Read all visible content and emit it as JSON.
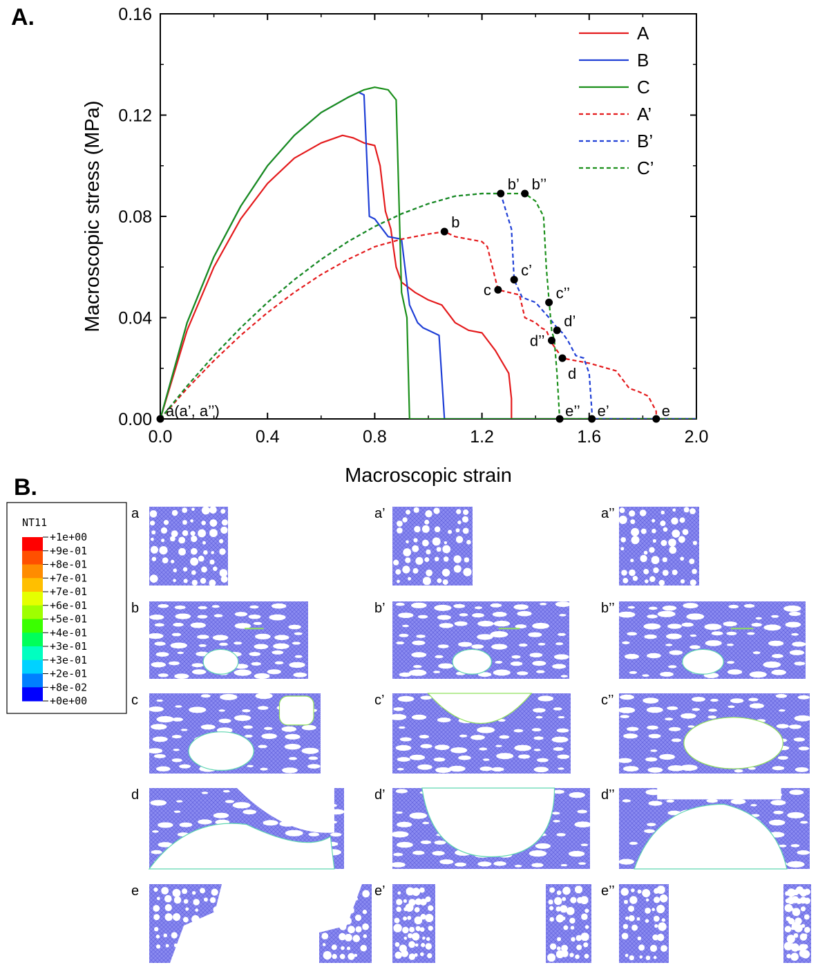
{
  "panel_a_label": "A.",
  "panel_b_label": "B.",
  "chart_data": {
    "type": "line",
    "title": "",
    "xlabel": "Macroscopic strain",
    "ylabel": "Macroscopic stress (MPa)",
    "xlim": [
      0,
      2.0
    ],
    "ylim": [
      0,
      0.16
    ],
    "xticks": [
      "0.0",
      "0.4",
      "0.8",
      "1.2",
      "1.6",
      "2.0"
    ],
    "yticks": [
      "0.00",
      "0.04",
      "0.08",
      "0.12",
      "0.16"
    ],
    "grid": false,
    "legend_position": "top-right",
    "series": [
      {
        "name": "A",
        "color": "#e41a1c",
        "dash": "solid",
        "x": [
          0,
          0.1,
          0.2,
          0.3,
          0.4,
          0.5,
          0.6,
          0.68,
          0.72,
          0.76,
          0.8,
          0.82,
          0.84,
          0.86,
          0.88,
          0.9,
          0.95,
          1.0,
          1.05,
          1.1,
          1.15,
          1.2,
          1.25,
          1.3,
          1.31,
          1.31,
          2.0
        ],
        "y": [
          0,
          0.035,
          0.06,
          0.079,
          0.093,
          0.103,
          0.109,
          0.112,
          0.111,
          0.109,
          0.108,
          0.1,
          0.082,
          0.075,
          0.06,
          0.054,
          0.05,
          0.047,
          0.045,
          0.038,
          0.035,
          0.034,
          0.027,
          0.018,
          0.008,
          0,
          0
        ]
      },
      {
        "name": "B",
        "color": "#1f3fd6",
        "dash": "solid",
        "x": [
          0,
          0.1,
          0.2,
          0.3,
          0.4,
          0.5,
          0.6,
          0.7,
          0.74,
          0.76,
          0.78,
          0.8,
          0.85,
          0.9,
          0.93,
          0.96,
          0.98,
          1.0,
          1.04,
          1.06,
          1.06,
          2.0
        ],
        "y": [
          0,
          0.038,
          0.064,
          0.084,
          0.1,
          0.112,
          0.121,
          0.127,
          0.129,
          0.128,
          0.08,
          0.079,
          0.072,
          0.071,
          0.045,
          0.038,
          0.036,
          0.035,
          0.033,
          0.0,
          0,
          0
        ]
      },
      {
        "name": "C",
        "color": "#1a8f1a",
        "dash": "solid",
        "x": [
          0,
          0.1,
          0.2,
          0.3,
          0.4,
          0.5,
          0.6,
          0.7,
          0.76,
          0.8,
          0.85,
          0.88,
          0.9,
          0.92,
          0.93,
          0.93,
          2.0
        ],
        "y": [
          0,
          0.038,
          0.064,
          0.084,
          0.1,
          0.112,
          0.121,
          0.127,
          0.13,
          0.131,
          0.13,
          0.126,
          0.05,
          0.04,
          0.0,
          0,
          0
        ]
      },
      {
        "name": "A'",
        "color": "#e41a1c",
        "dash": "dashed",
        "x": [
          0,
          0.1,
          0.2,
          0.3,
          0.4,
          0.5,
          0.6,
          0.7,
          0.8,
          0.9,
          1.0,
          1.06,
          1.1,
          1.2,
          1.22,
          1.26,
          1.3,
          1.34,
          1.36,
          1.4,
          1.42,
          1.44,
          1.46,
          1.5,
          1.55,
          1.6,
          1.7,
          1.75,
          1.78,
          1.82,
          1.85,
          1.85,
          2.0
        ],
        "y": [
          0,
          0.012,
          0.023,
          0.033,
          0.042,
          0.05,
          0.057,
          0.063,
          0.068,
          0.071,
          0.073,
          0.074,
          0.072,
          0.07,
          0.068,
          0.051,
          0.05,
          0.049,
          0.04,
          0.038,
          0.036,
          0.035,
          0.03,
          0.024,
          0.023,
          0.022,
          0.019,
          0.012,
          0.011,
          0.009,
          0.003,
          0,
          0
        ]
      },
      {
        "name": "B'",
        "color": "#1f3fd6",
        "dash": "dashed",
        "x": [
          0,
          0.1,
          0.2,
          0.3,
          0.4,
          0.5,
          0.6,
          0.7,
          0.8,
          0.9,
          1.0,
          1.1,
          1.2,
          1.27,
          1.29,
          1.31,
          1.32,
          1.35,
          1.4,
          1.45,
          1.48,
          1.5,
          1.52,
          1.55,
          1.58,
          1.6,
          1.61,
          1.61,
          2.0
        ],
        "y": [
          0,
          0.013,
          0.025,
          0.036,
          0.046,
          0.055,
          0.063,
          0.07,
          0.076,
          0.081,
          0.085,
          0.088,
          0.089,
          0.089,
          0.082,
          0.075,
          0.055,
          0.048,
          0.046,
          0.04,
          0.036,
          0.034,
          0.031,
          0.025,
          0.024,
          0.018,
          0.003,
          0,
          0
        ]
      },
      {
        "name": "C'",
        "color": "#1a8f1a",
        "dash": "dashed",
        "x": [
          0,
          0.1,
          0.2,
          0.3,
          0.4,
          0.5,
          0.6,
          0.7,
          0.8,
          0.9,
          1.0,
          1.1,
          1.2,
          1.27,
          1.36,
          1.4,
          1.43,
          1.44,
          1.45,
          1.46,
          1.47,
          1.48,
          1.49,
          1.49,
          2.0
        ],
        "y": [
          0,
          0.013,
          0.025,
          0.036,
          0.046,
          0.055,
          0.063,
          0.07,
          0.076,
          0.081,
          0.085,
          0.088,
          0.089,
          0.089,
          0.089,
          0.086,
          0.08,
          0.06,
          0.047,
          0.035,
          0.031,
          0.018,
          0.0,
          0,
          0
        ]
      }
    ],
    "annotations": [
      {
        "label": "a(a’, a’’)",
        "x": 0.0,
        "y": 0.0,
        "side": "right-up"
      },
      {
        "label": "b",
        "x": 1.06,
        "y": 0.074,
        "side": "right-up"
      },
      {
        "label": "b’",
        "x": 1.27,
        "y": 0.089,
        "side": "right-up"
      },
      {
        "label": "b’’",
        "x": 1.36,
        "y": 0.089,
        "side": "right-up"
      },
      {
        "label": "c",
        "x": 1.26,
        "y": 0.051,
        "side": "left"
      },
      {
        "label": "c’",
        "x": 1.32,
        "y": 0.055,
        "side": "right-up"
      },
      {
        "label": "c’’",
        "x": 1.45,
        "y": 0.046,
        "side": "right-up"
      },
      {
        "label": "d",
        "x": 1.5,
        "y": 0.024,
        "side": "right-down"
      },
      {
        "label": "d’",
        "x": 1.48,
        "y": 0.035,
        "side": "right-up"
      },
      {
        "label": "d’’",
        "x": 1.46,
        "y": 0.031,
        "side": "left"
      },
      {
        "label": "e",
        "x": 1.85,
        "y": 0.0,
        "side": "right-up"
      },
      {
        "label": "e’",
        "x": 1.61,
        "y": 0.0,
        "side": "right-up"
      },
      {
        "label": "e’’",
        "x": 1.49,
        "y": 0.0,
        "side": "right-up"
      }
    ]
  },
  "colorbar": {
    "title": "NT11",
    "levels": [
      "+1e+00",
      "+9e-01",
      "+8e-01",
      "+7e-01",
      "+7e-01",
      "+6e-01",
      "+5e-01",
      "+4e-01",
      "+3e-01",
      "+3e-01",
      "+2e-01",
      "+8e-02",
      "+0e+00"
    ],
    "colors": [
      "#ff0000",
      "#ff5000",
      "#ff8c00",
      "#ffbf00",
      "#e5ff00",
      "#9fff00",
      "#3aff00",
      "#00ff5a",
      "#00ffc0",
      "#00d2ff",
      "#0080ff",
      "#0000ff"
    ]
  },
  "simulations": {
    "rows": [
      [
        "a",
        "a’",
        "a’’"
      ],
      [
        "b",
        "b’",
        "b’’"
      ],
      [
        "c",
        "c’",
        "c’’"
      ],
      [
        "d",
        "d’",
        "d’’"
      ],
      [
        "e",
        "e’",
        "e’’"
      ]
    ],
    "mesh_color": "#7b7bea"
  }
}
